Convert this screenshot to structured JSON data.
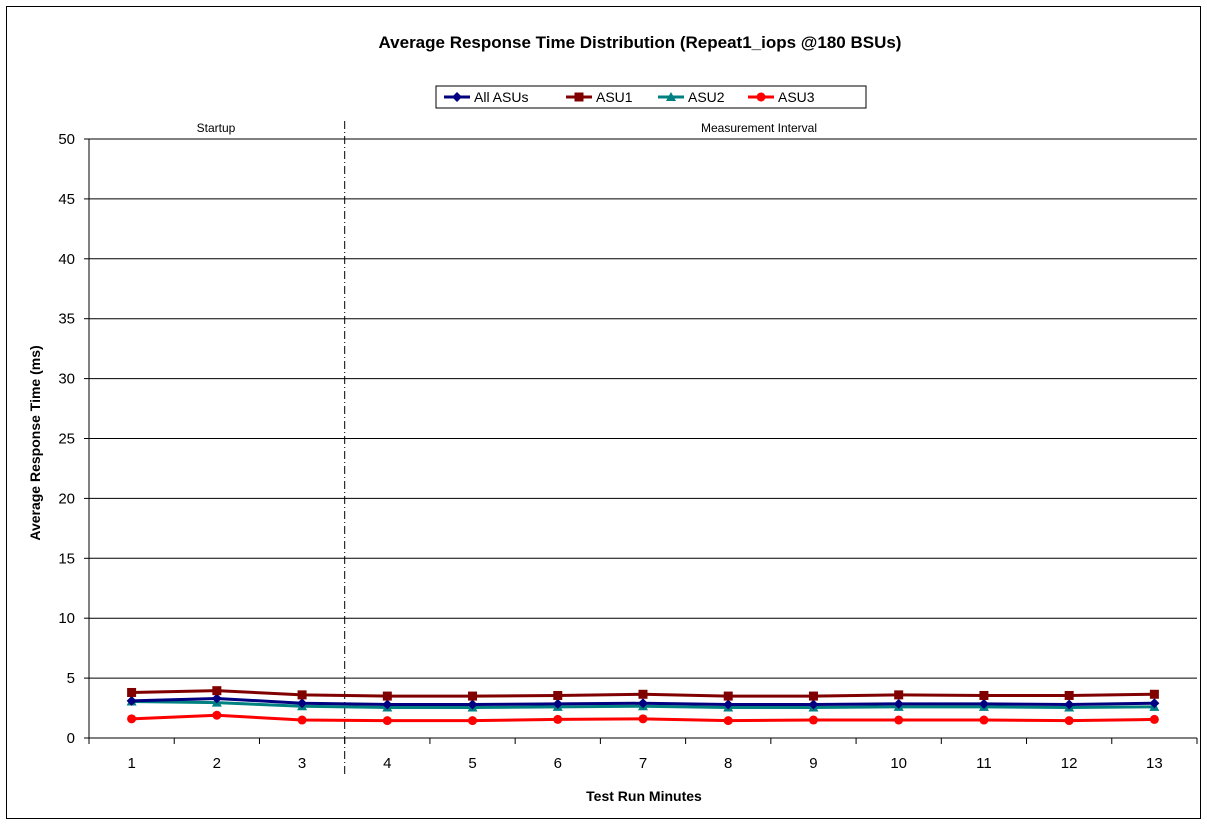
{
  "chart_data": {
    "type": "line",
    "title": "Average Response Time Distribution (Repeat1_iops @180 BSUs)",
    "xlabel": "Test Run Minutes",
    "ylabel": "Average Response Time (ms)",
    "ylim": [
      0,
      50
    ],
    "yticks": [
      0,
      5,
      10,
      15,
      20,
      25,
      30,
      35,
      40,
      45,
      50
    ],
    "grid": true,
    "legend_position": "top-center",
    "categories": [
      "1",
      "2",
      "3",
      "4",
      "5",
      "6",
      "7",
      "8",
      "9",
      "10",
      "11",
      "12",
      "13"
    ],
    "series": [
      {
        "name": "All ASUs",
        "color": "#000080",
        "marker": "diamond",
        "values": [
          3.1,
          3.3,
          2.9,
          2.8,
          2.8,
          2.85,
          2.9,
          2.8,
          2.8,
          2.85,
          2.85,
          2.8,
          2.9
        ]
      },
      {
        "name": "ASU1",
        "color": "#800000",
        "marker": "square",
        "values": [
          3.8,
          3.95,
          3.6,
          3.5,
          3.5,
          3.55,
          3.65,
          3.5,
          3.5,
          3.6,
          3.55,
          3.55,
          3.65
        ]
      },
      {
        "name": "ASU2",
        "color": "#008080",
        "marker": "triangle",
        "values": [
          3.05,
          2.95,
          2.65,
          2.55,
          2.55,
          2.6,
          2.65,
          2.55,
          2.55,
          2.6,
          2.6,
          2.55,
          2.6
        ]
      },
      {
        "name": "ASU3",
        "color": "#ff0000",
        "marker": "circle",
        "values": [
          1.6,
          1.9,
          1.5,
          1.45,
          1.45,
          1.55,
          1.6,
          1.45,
          1.5,
          1.5,
          1.5,
          1.45,
          1.55
        ]
      }
    ],
    "annotations": {
      "startup_label": "Startup",
      "measurement_label": "Measurement Interval",
      "divider_after_category": "3"
    }
  }
}
